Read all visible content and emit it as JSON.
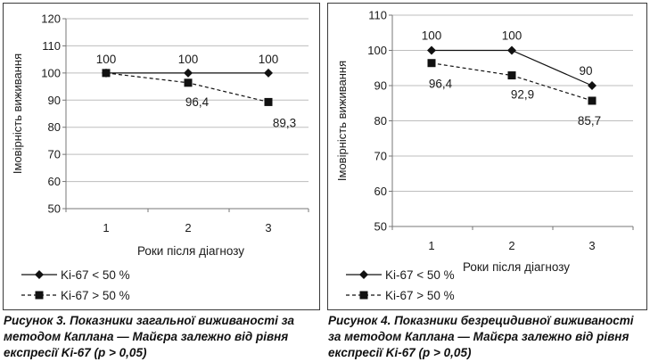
{
  "charts": [
    {
      "caption": "Рисунок 3. Показники загальної виживаності за методом Каплана — Майєра залежно від рівня експресії Ki-67 (p > 0,05)",
      "chart_data": {
        "type": "line",
        "title": "",
        "xlabel": "Роки після діагнозу",
        "ylabel": "Імовірність виживання",
        "categories": [
          "1",
          "2",
          "3"
        ],
        "ylim": [
          50,
          120
        ],
        "yticks": [
          "50",
          "60",
          "70",
          "80",
          "90",
          "100",
          "110",
          "120"
        ],
        "grid": "horizontal",
        "legend_position": "bottom-left",
        "series": [
          {
            "name": "Ki-67 < 50 %",
            "values": [
              100,
              100,
              100
            ],
            "labels": [
              "100",
              "100",
              "100"
            ],
            "marker": "diamond",
            "line": "solid",
            "color": "#111111"
          },
          {
            "name": "Ki-67 > 50 %",
            "values": [
              100,
              96.4,
              89.3
            ],
            "labels": [
              "",
              "96,4",
              "89,3"
            ],
            "marker": "square",
            "line": "dashed",
            "color": "#111111"
          }
        ]
      }
    },
    {
      "caption": "Рисунок 4. Показники безрецидивної виживаності за методом Каплана — Майєра залежно від рівня експресії Ki-67 (p > 0,05)",
      "chart_data": {
        "type": "line",
        "title": "",
        "xlabel": "Роки після діагнозу",
        "ylabel": "Імовірність виживання",
        "categories": [
          "1",
          "2",
          "3"
        ],
        "ylim": [
          50,
          110
        ],
        "yticks": [
          "50",
          "60",
          "70",
          "80",
          "90",
          "100",
          "110"
        ],
        "grid": "horizontal",
        "legend_position": "bottom-left",
        "series": [
          {
            "name": "Ki-67 < 50 %",
            "values": [
              100,
              100,
              90
            ],
            "labels": [
              "100",
              "100",
              "90"
            ],
            "marker": "diamond",
            "line": "solid",
            "color": "#111111"
          },
          {
            "name": "Ki-67 > 50 %",
            "values": [
              96.4,
              92.9,
              85.7
            ],
            "labels": [
              "96,4",
              "92,9",
              "85,7"
            ],
            "marker": "square",
            "line": "dashed",
            "color": "#111111"
          }
        ]
      }
    }
  ],
  "colors": {
    "axis": "#777777",
    "grid": "#bdbdbd",
    "text": "#1a1a1a",
    "border": "#3a3a3a"
  }
}
